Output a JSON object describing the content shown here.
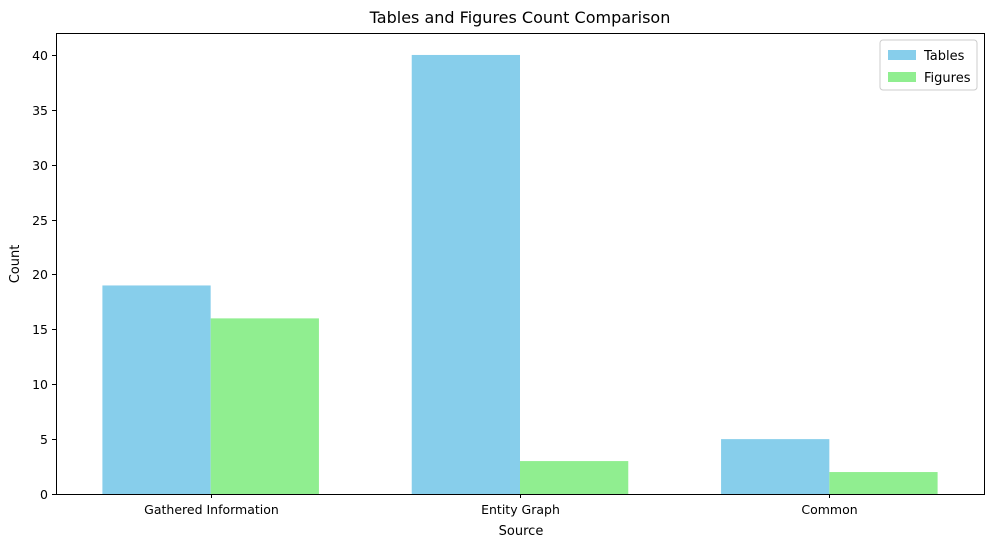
{
  "chart_data": {
    "type": "bar",
    "title": "Tables and Figures Count Comparison",
    "xlabel": "Source",
    "ylabel": "Count",
    "categories": [
      "Gathered Information",
      "Entity Graph",
      "Common"
    ],
    "series": [
      {
        "name": "Tables",
        "values": [
          19,
          40,
          5
        ],
        "color": "#87CEEB"
      },
      {
        "name": "Figures",
        "values": [
          16,
          3,
          2
        ],
        "color": "#90EE90"
      }
    ],
    "ylim": [
      0,
      42
    ],
    "yticks": [
      0,
      5,
      10,
      15,
      20,
      25,
      30,
      35,
      40
    ],
    "grid": false,
    "legend_position": "top-right"
  }
}
